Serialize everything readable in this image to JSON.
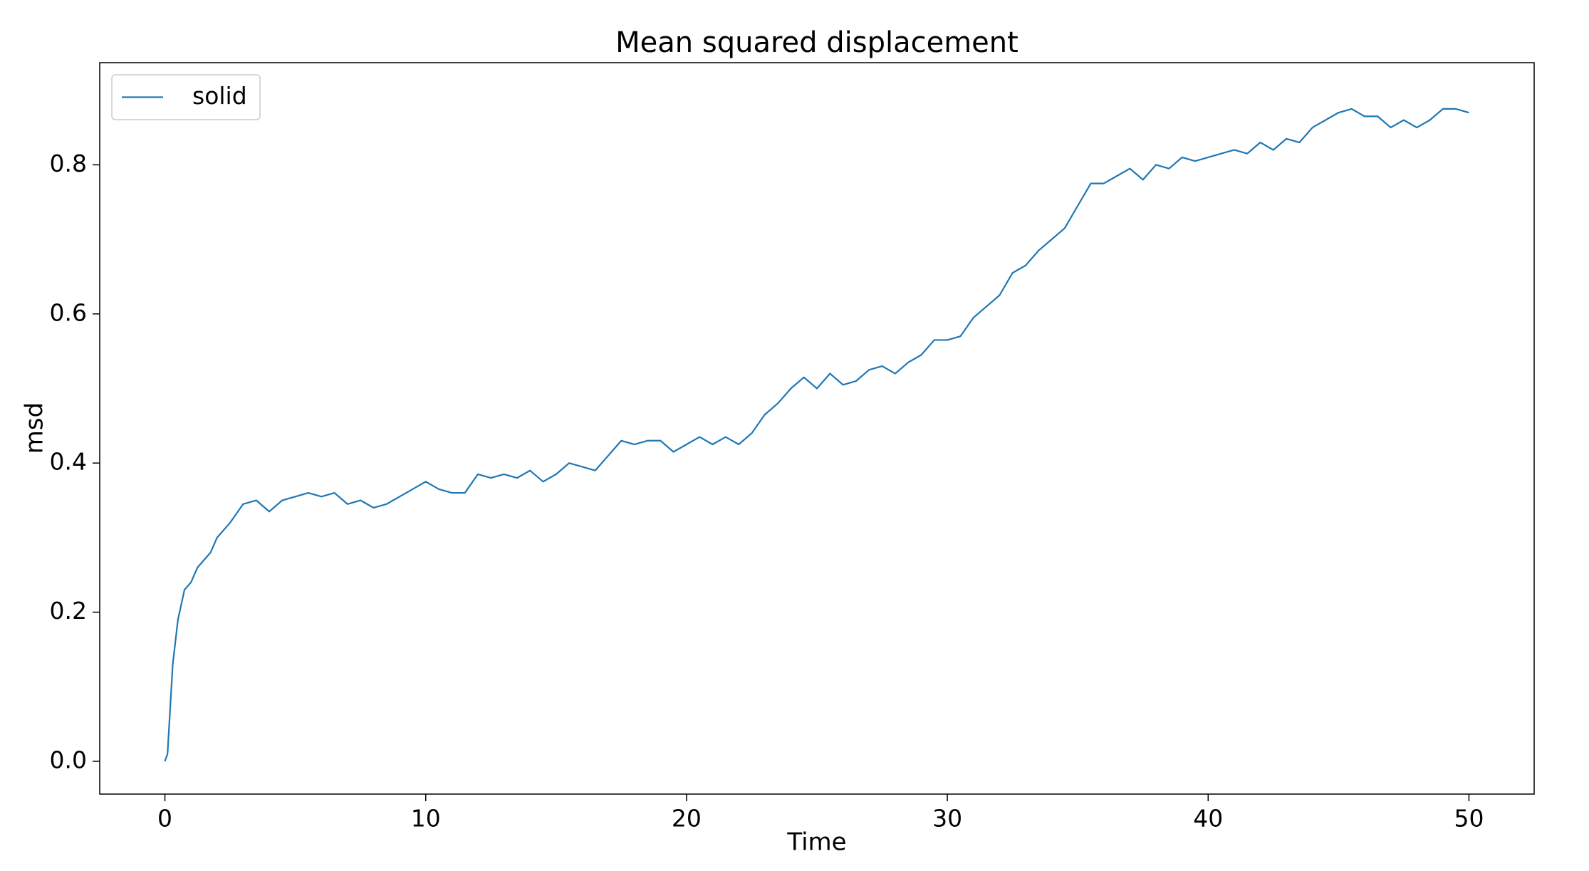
{
  "chart_data": {
    "type": "line",
    "title": "Mean squared displacement",
    "xlabel": "Time",
    "ylabel": "msd",
    "x": [
      0,
      0.1,
      0.2,
      0.3,
      0.5,
      0.75,
      1,
      1.25,
      1.5,
      1.75,
      2,
      2.5,
      3,
      3.5,
      4,
      4.5,
      5,
      5.5,
      6,
      6.5,
      7,
      7.5,
      8,
      8.5,
      9,
      9.5,
      10,
      10.5,
      11,
      11.5,
      12,
      12.5,
      13,
      13.5,
      14,
      14.5,
      15,
      15.5,
      16,
      16.5,
      17,
      17.5,
      18,
      18.5,
      19,
      19.5,
      20,
      20.5,
      21,
      21.5,
      22,
      22.5,
      23,
      23.5,
      24,
      24.5,
      25,
      25.5,
      26,
      26.5,
      27,
      27.5,
      28,
      28.5,
      29,
      29.5,
      30,
      30.5,
      31,
      31.5,
      32,
      32.5,
      33,
      33.5,
      34,
      34.5,
      35,
      35.5,
      36,
      36.5,
      37,
      37.5,
      38,
      38.5,
      39,
      39.5,
      40,
      40.5,
      41,
      41.5,
      42,
      42.5,
      43,
      43.5,
      44,
      44.5,
      45,
      45.5,
      46,
      46.5,
      47,
      47.5,
      48,
      48.5,
      49,
      49.5,
      50
    ],
    "series": [
      {
        "name": "solid",
        "color": "#1f77b4",
        "values": [
          0,
          0.01,
          0.07,
          0.13,
          0.19,
          0.23,
          0.24,
          0.26,
          0.27,
          0.28,
          0.3,
          0.32,
          0.345,
          0.35,
          0.335,
          0.35,
          0.355,
          0.36,
          0.355,
          0.36,
          0.345,
          0.35,
          0.34,
          0.345,
          0.355,
          0.365,
          0.375,
          0.365,
          0.36,
          0.36,
          0.385,
          0.38,
          0.385,
          0.38,
          0.39,
          0.375,
          0.385,
          0.4,
          0.395,
          0.39,
          0.41,
          0.43,
          0.425,
          0.43,
          0.43,
          0.415,
          0.425,
          0.435,
          0.425,
          0.435,
          0.425,
          0.44,
          0.465,
          0.48,
          0.5,
          0.515,
          0.5,
          0.52,
          0.505,
          0.51,
          0.525,
          0.53,
          0.52,
          0.535,
          0.545,
          0.565,
          0.565,
          0.57,
          0.595,
          0.61,
          0.625,
          0.655,
          0.665,
          0.685,
          0.7,
          0.715,
          0.745,
          0.775,
          0.775,
          0.785,
          0.795,
          0.78,
          0.8,
          0.795,
          0.81,
          0.805,
          0.81,
          0.815,
          0.82,
          0.815,
          0.83,
          0.82,
          0.835,
          0.83,
          0.85,
          0.86,
          0.87,
          0.875,
          0.865,
          0.865,
          0.85,
          0.86,
          0.85,
          0.86,
          0.875,
          0.875,
          0.87
        ]
      }
    ],
    "xlim": [
      -2.5,
      52.5
    ],
    "xticks": [
      0,
      10,
      20,
      30,
      40,
      50
    ],
    "ylim": [
      -0.044,
      0.937
    ],
    "yticks": [
      {
        "value": 0,
        "label": "0.0"
      },
      0.2,
      0.4,
      0.6,
      0.8
    ],
    "legend": "upper left",
    "grid": false
  }
}
